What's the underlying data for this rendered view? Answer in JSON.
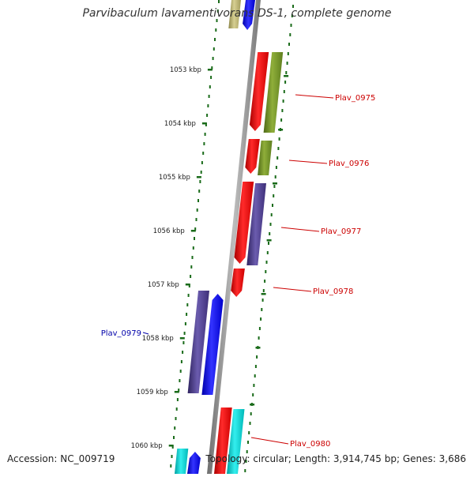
{
  "title": "Parvibaculum lavamentivorans DS-1, complete genome",
  "footer": {
    "accession": "Accession: NC_009719",
    "topology": "Topology: circular",
    "length": "Length: 3,914,745 bp",
    "genes": "Genes: 3,686"
  },
  "ruler": {
    "ticks": [
      "1053 kbp",
      "1054 kbp",
      "1055 kbp",
      "1056 kbp",
      "1057 kbp",
      "1058 kbp",
      "1059 kbp",
      "1060 kbp"
    ]
  },
  "genes": [
    {
      "label": "Plav_0975",
      "strand": "forward",
      "color": "#cc0000"
    },
    {
      "label": "Plav_0976",
      "strand": "forward",
      "color": "#cc0000"
    },
    {
      "label": "Plav_0977",
      "strand": "forward",
      "color": "#cc0000"
    },
    {
      "label": "Plav_0978",
      "strand": "forward",
      "color": "#cc0000"
    },
    {
      "label": "Plav_0979",
      "strand": "reverse",
      "color": "#0000aa"
    },
    {
      "label": "Plav_0980",
      "strand": "forward",
      "color": "#cc0000"
    }
  ],
  "colors": {
    "backbone": "#888888",
    "ruler_tick": "#1a6b1a",
    "forward_label": "#cc0000",
    "reverse_label": "#0000aa",
    "red_gene": "#ee0000",
    "green_gene": "#6b8e23",
    "purple_gene": "#4b3b8a",
    "blue_gene": "#0000ee",
    "cyan_gene": "#00cccc",
    "khaki_gene": "#b5ad6a"
  }
}
